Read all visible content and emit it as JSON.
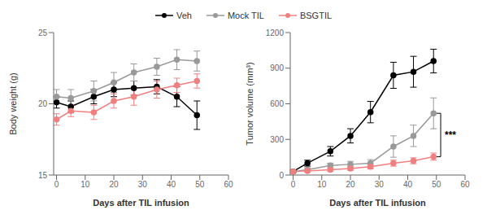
{
  "chart_data": [
    {
      "type": "line",
      "marker": "circle",
      "legend": "top",
      "xlabel": "Days after TIL infusion",
      "ylabel": "Body weight (g)",
      "x": [
        0,
        5,
        13,
        20,
        27,
        35,
        42,
        49
      ],
      "series": [
        {
          "name": "Veh",
          "color": "#000000",
          "values": [
            20.1,
            19.8,
            20.5,
            21.0,
            21.1,
            21.2,
            20.5,
            19.2
          ],
          "errors": [
            0.4,
            0.4,
            0.5,
            0.5,
            0.5,
            0.5,
            0.7,
            1.0
          ]
        },
        {
          "name": "Mock TIL",
          "color": "#999999",
          "values": [
            20.5,
            20.4,
            20.9,
            21.5,
            22.2,
            22.6,
            23.1,
            23.0
          ],
          "errors": [
            0.5,
            0.6,
            0.7,
            0.7,
            0.6,
            0.6,
            0.7,
            0.7
          ]
        },
        {
          "name": "BSGTIL",
          "color": "#f08080",
          "values": [
            18.9,
            19.5,
            19.4,
            20.2,
            20.5,
            21.0,
            21.3,
            21.6
          ],
          "errors": [
            0.4,
            0.4,
            0.5,
            0.5,
            0.6,
            0.6,
            0.5,
            0.5
          ]
        }
      ],
      "xlim": [
        -1,
        60
      ],
      "xticks": [
        0,
        10,
        20,
        30,
        40,
        50,
        60
      ],
      "ylim": [
        15,
        25
      ],
      "yticks": [
        15,
        20,
        25
      ]
    },
    {
      "type": "line",
      "marker": "circle",
      "xlabel": "Days after TIL infusion",
      "ylabel": "Tumor volume (mm³)",
      "x": [
        0,
        5,
        13,
        20,
        27,
        35,
        42,
        49
      ],
      "series": [
        {
          "name": "Veh",
          "color": "#000000",
          "values": [
            30,
            100,
            200,
            330,
            530,
            840,
            870,
            960
          ],
          "errors": [
            10,
            25,
            40,
            60,
            90,
            110,
            130,
            100
          ]
        },
        {
          "name": "Mock TIL",
          "color": "#999999",
          "values": [
            30,
            45,
            80,
            90,
            100,
            240,
            330,
            520
          ],
          "errors": [
            10,
            15,
            20,
            25,
            30,
            90,
            90,
            130
          ]
        },
        {
          "name": "BSGTIL",
          "color": "#f08080",
          "values": [
            30,
            35,
            45,
            55,
            70,
            100,
            120,
            155
          ],
          "errors": [
            8,
            8,
            12,
            15,
            18,
            25,
            25,
            30
          ]
        }
      ],
      "xlim": [
        -1,
        60
      ],
      "xticks": [
        0,
        10,
        20,
        30,
        40,
        50,
        60
      ],
      "ylim": [
        0,
        1200
      ],
      "yticks": [
        0,
        300,
        600,
        900,
        1200
      ],
      "annotations": [
        {
          "text": "***",
          "x": 51.5,
          "y_top": 520,
          "y_bottom": 155
        }
      ]
    }
  ]
}
